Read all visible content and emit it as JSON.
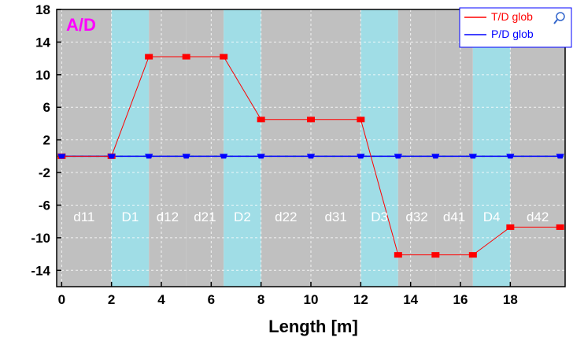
{
  "chart_data": {
    "type": "line",
    "title": "A/D",
    "xlabel": "Length [m]",
    "ylabel": "",
    "xlim": [
      -0.2,
      20.2
    ],
    "ylim": [
      -16,
      18
    ],
    "xticks": [
      0,
      2,
      4,
      6,
      8,
      10,
      12,
      14,
      16,
      18
    ],
    "xtick_labels": [
      "0",
      "2",
      "4",
      "6",
      "8",
      "10",
      "12",
      "14",
      "16",
      "18"
    ],
    "yticks": [
      18,
      14,
      10,
      6,
      2,
      -2,
      -6,
      -10,
      -14
    ],
    "ytick_labels": [
      "18",
      "14",
      "10",
      "6",
      "2",
      "-2",
      "-6",
      "-10",
      "-14"
    ],
    "grid": true,
    "legend_position": "top-right",
    "colors": {
      "d_region": "#c0c0c0",
      "D_region": "#a0dde6",
      "title": "#ff00ff",
      "td_series": "#ff0000",
      "pd_series": "#0000ff",
      "baseline": "#00cc00"
    },
    "regions": [
      {
        "label": "d11",
        "x0": -0.2,
        "x1": 2.0,
        "kind": "d"
      },
      {
        "label": "D1",
        "x0": 2.0,
        "x1": 3.5,
        "kind": "D"
      },
      {
        "label": "d12",
        "x0": 3.5,
        "x1": 5.0,
        "kind": "d"
      },
      {
        "label": "d21",
        "x0": 5.0,
        "x1": 6.5,
        "kind": "d"
      },
      {
        "label": "D2",
        "x0": 6.5,
        "x1": 8.0,
        "kind": "D"
      },
      {
        "label": "d22",
        "x0": 8.0,
        "x1": 10.0,
        "kind": "d"
      },
      {
        "label": "d31",
        "x0": 10.0,
        "x1": 12.0,
        "kind": "d"
      },
      {
        "label": "D3",
        "x0": 12.0,
        "x1": 13.5,
        "kind": "D"
      },
      {
        "label": "d32",
        "x0": 13.5,
        "x1": 15.0,
        "kind": "d"
      },
      {
        "label": "d41",
        "x0": 15.0,
        "x1": 16.5,
        "kind": "d"
      },
      {
        "label": "D4",
        "x0": 16.5,
        "x1": 18.0,
        "kind": "D"
      },
      {
        "label": "d42",
        "x0": 18.0,
        "x1": 20.2,
        "kind": "d"
      }
    ],
    "series": [
      {
        "name": "T/D  glob",
        "color": "#ff0000",
        "x": [
          0,
          2.0,
          3.5,
          5.0,
          6.5,
          8.0,
          10.0,
          12.0,
          13.5,
          15.0,
          16.5,
          18.0,
          20.0
        ],
        "y": [
          0,
          0,
          12.2,
          12.2,
          12.2,
          4.5,
          4.5,
          4.5,
          -12.1,
          -12.1,
          -12.1,
          -8.7,
          -8.7
        ]
      },
      {
        "name": "P/D  glob",
        "color": "#0000ff",
        "x": [
          0,
          2.0,
          3.5,
          5.0,
          6.5,
          8.0,
          10.0,
          12.0,
          13.5,
          15.0,
          16.5,
          18.0,
          20.0
        ],
        "y": [
          0,
          0,
          0,
          0,
          0,
          0,
          0,
          0,
          0,
          0,
          0,
          0,
          0
        ]
      }
    ]
  }
}
